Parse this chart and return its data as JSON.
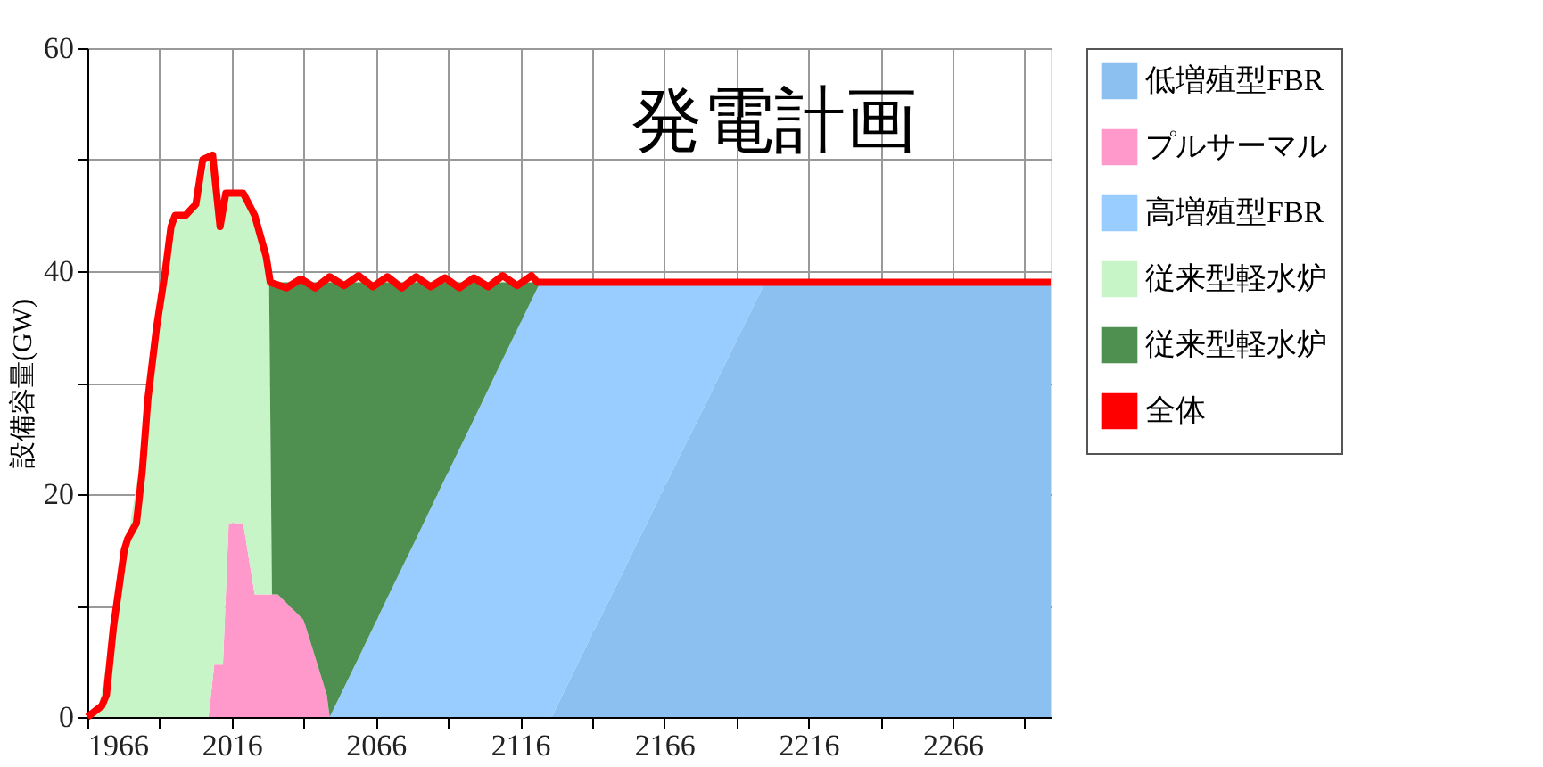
{
  "chart_data": {
    "type": "area",
    "title": "発電計画",
    "ylabel": "設備容量(GW)",
    "stacked": true,
    "legend": "right",
    "grid": true,
    "x": [
      1966,
      1970,
      1975,
      1980,
      1985,
      1990,
      1995,
      2000,
      2005,
      2008,
      2010,
      2013,
      2015,
      2020,
      2024,
      2029,
      2030,
      2032,
      2041,
      2049,
      2050,
      2060,
      2070,
      2080,
      2090,
      2100,
      2110,
      2120,
      2123,
      2127,
      2140,
      2150,
      2160,
      2170,
      2180,
      2190,
      2201,
      2250,
      2300
    ],
    "xlim": [
      1966,
      2300
    ],
    "ylim": [
      0,
      60
    ],
    "xticks": [
      1966,
      {
        "value": 1991,
        "label": null
      },
      2016,
      {
        "value": 2041,
        "label": null
      },
      2066,
      {
        "value": 2091,
        "label": null
      },
      2116,
      {
        "value": 2141,
        "label": null
      },
      2166,
      {
        "value": 2191,
        "label": null
      },
      2216,
      {
        "value": 2241,
        "label": null
      },
      2266,
      {
        "value": 2291,
        "label": null
      }
    ],
    "yticks": [
      0,
      {
        "value": 10,
        "label": null
      },
      20,
      {
        "value": 30,
        "label": null
      },
      40,
      {
        "value": 50,
        "label": null
      },
      60
    ],
    "series": [
      {
        "name": "低増殖型FBR",
        "color": "#8cc0f0",
        "values": [
          null,
          null,
          null,
          null,
          null,
          null,
          null,
          null,
          null,
          null,
          null,
          null,
          null,
          null,
          null,
          null,
          null,
          null,
          null,
          null,
          null,
          null,
          null,
          null,
          null,
          null,
          null,
          null,
          null,
          0,
          6.9,
          12.1,
          17.4,
          22.7,
          27.9,
          33.2,
          39,
          39,
          39
        ]
      },
      {
        "name": "プルサーマル",
        "color": "#ff99cc",
        "values": [
          null,
          null,
          null,
          null,
          null,
          null,
          null,
          null,
          null,
          0,
          4.7,
          4.7,
          17.4,
          17.4,
          11,
          11,
          11,
          11,
          8.7,
          2,
          0,
          null,
          null,
          null,
          null,
          null,
          null,
          null,
          null,
          null,
          null,
          null,
          null,
          null,
          null,
          null,
          null,
          null,
          null
        ]
      },
      {
        "name": "高増殖型FBR",
        "color": "#99ccff",
        "values": [
          null,
          null,
          null,
          null,
          null,
          null,
          null,
          null,
          null,
          null,
          null,
          null,
          null,
          null,
          null,
          null,
          null,
          null,
          null,
          null,
          0,
          5.3,
          10.7,
          16,
          21.4,
          26.7,
          32.1,
          37.4,
          39,
          39,
          32.1,
          26.9,
          21.6,
          16.3,
          11.1,
          5.8,
          0,
          null,
          null
        ]
      },
      {
        "name": "従来型軽水炉",
        "color": "#c8f5c8",
        "values": [
          0,
          1,
          8,
          16,
          24,
          34,
          44,
          45,
          47,
          50,
          45.3,
          40.3,
          29.6,
          29.6,
          34,
          28,
          0,
          null,
          null,
          null,
          null,
          null,
          null,
          null,
          null,
          null,
          null,
          null,
          null,
          null,
          null,
          null,
          null,
          null,
          null,
          null,
          null,
          null,
          null
        ]
      },
      {
        "name": "従来型軽水炉",
        "color": "#4f8f4f",
        "values": [
          null,
          null,
          null,
          null,
          null,
          null,
          null,
          null,
          null,
          null,
          null,
          null,
          null,
          null,
          null,
          0,
          28,
          28,
          30.3,
          37,
          39,
          33.7,
          28.3,
          23,
          17.6,
          12.3,
          6.9,
          1.6,
          0,
          null,
          null,
          null,
          null,
          null,
          null,
          null,
          null,
          null,
          null
        ]
      },
      {
        "name": "全体",
        "type": "line",
        "color": "#ff0000",
        "x": [
          1966,
          1971,
          1972.6,
          1975,
          1978.8,
          1980,
          1983,
          1985,
          1987,
          1990,
          1993,
          1995,
          1996.4,
          2000,
          2003.6,
          2006,
          2009.4,
          2012,
          2014,
          2020,
          2024,
          2028,
          2029.4,
          2035,
          2040,
          2045,
          2050,
          2055,
          2060,
          2065,
          2070,
          2075,
          2080,
          2085,
          2090,
          2095,
          2100,
          2105,
          2110,
          2115,
          2120,
          2122,
          2300
        ],
        "values": [
          0,
          1,
          2,
          8,
          15,
          16,
          17.4,
          22,
          28.6,
          35,
          40,
          44,
          45,
          45,
          46,
          50,
          50.4,
          44,
          47,
          47,
          45,
          41.3,
          39,
          38.5,
          39.3,
          38.5,
          39.5,
          38.7,
          39.6,
          38.6,
          39.5,
          38.5,
          39.5,
          38.6,
          39.4,
          38.5,
          39.4,
          38.6,
          39.6,
          38.7,
          39.6,
          39,
          39
        ]
      }
    ]
  }
}
